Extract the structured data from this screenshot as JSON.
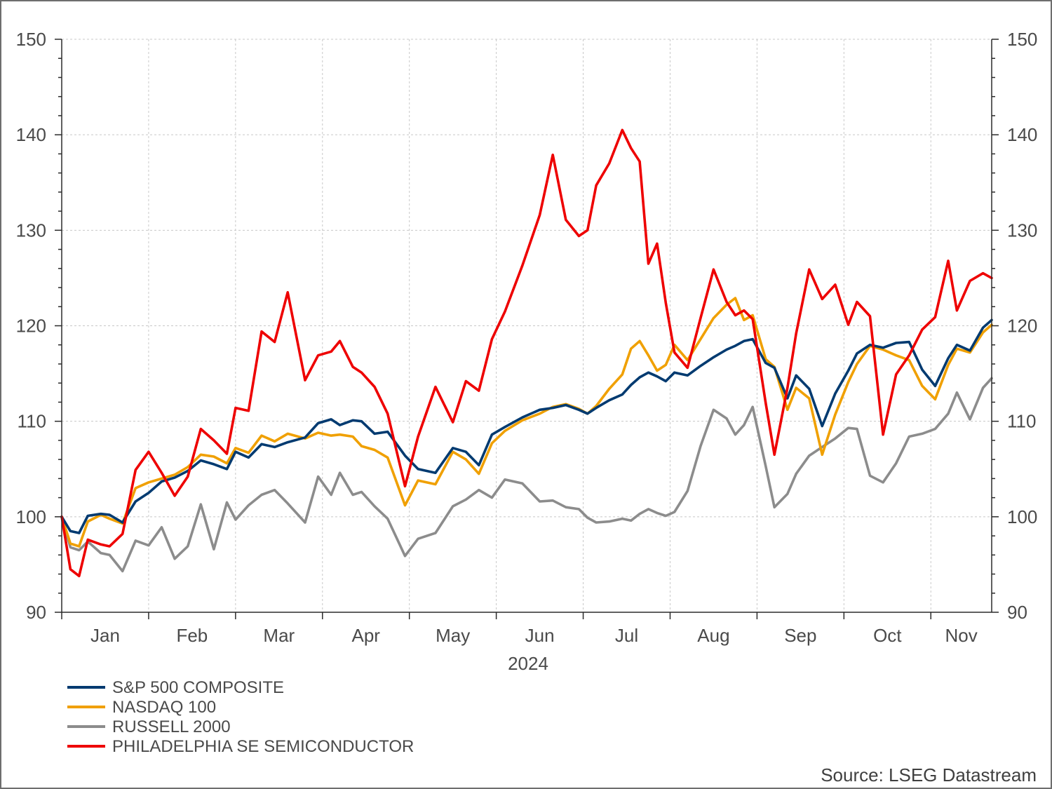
{
  "chart_data": {
    "type": "line",
    "title": "",
    "xlabel": "2024",
    "ylabel": "",
    "ylim": [
      90,
      150
    ],
    "yticks": [
      90,
      100,
      110,
      120,
      130,
      140,
      150
    ],
    "yticks_both_sides": true,
    "grid": true,
    "x_unit": "month index (0 = start of Jan 2024)",
    "xlim": [
      0,
      10.7
    ],
    "months": [
      "Jan",
      "Feb",
      "Mar",
      "Apr",
      "May",
      "Jun",
      "Jul",
      "Aug",
      "Sep",
      "Oct",
      "Nov"
    ],
    "year": "2024",
    "legend_position": "bottom-left",
    "source": "Source: LSEG Datastream",
    "series": [
      {
        "name": "S&P 500 COMPOSITE",
        "color": "#003a70",
        "x": [
          0,
          0.1,
          0.2,
          0.3,
          0.45,
          0.55,
          0.7,
          0.85,
          1.0,
          1.15,
          1.3,
          1.45,
          1.6,
          1.75,
          1.9,
          2.0,
          2.15,
          2.3,
          2.45,
          2.6,
          2.8,
          2.95,
          3.1,
          3.2,
          3.35,
          3.45,
          3.6,
          3.75,
          3.95,
          4.1,
          4.3,
          4.5,
          4.65,
          4.8,
          4.95,
          5.1,
          5.3,
          5.5,
          5.65,
          5.8,
          5.95,
          6.05,
          6.15,
          6.3,
          6.45,
          6.55,
          6.65,
          6.75,
          6.85,
          6.95,
          7.05,
          7.2,
          7.35,
          7.5,
          7.65,
          7.75,
          7.85,
          7.95,
          8.1,
          8.2,
          8.35,
          8.45,
          8.6,
          8.75,
          8.9,
          9.05,
          9.15,
          9.3,
          9.45,
          9.6,
          9.75,
          9.9,
          10.05,
          10.2,
          10.3,
          10.45,
          10.6,
          10.7
        ],
        "y": [
          100,
          98.5,
          98.3,
          100.1,
          100.3,
          100.2,
          99.4,
          101.6,
          102.5,
          103.7,
          104.1,
          104.8,
          105.9,
          105.5,
          105.0,
          106.8,
          106.2,
          107.6,
          107.3,
          107.8,
          108.3,
          109.8,
          110.2,
          109.6,
          110.1,
          110.0,
          108.7,
          108.9,
          106.4,
          105.0,
          104.6,
          107.2,
          106.8,
          105.4,
          108.6,
          109.4,
          110.4,
          111.2,
          111.4,
          111.7,
          111.2,
          110.8,
          111.4,
          112.2,
          112.8,
          113.8,
          114.6,
          115.1,
          114.7,
          114.2,
          115.1,
          114.8,
          115.8,
          116.7,
          117.5,
          117.9,
          118.4,
          118.6,
          116.1,
          115.6,
          112.4,
          114.8,
          113.4,
          109.5,
          112.9,
          115.3,
          117.1,
          118.0,
          117.7,
          118.2,
          118.3,
          115.4,
          113.7,
          116.6,
          118.0,
          117.4,
          119.8,
          120.6
        ]
      },
      {
        "name": "NASDAQ 100",
        "color": "#f0a000",
        "x": [
          0,
          0.1,
          0.2,
          0.3,
          0.45,
          0.55,
          0.7,
          0.85,
          1.0,
          1.15,
          1.3,
          1.45,
          1.6,
          1.75,
          1.9,
          2.0,
          2.15,
          2.3,
          2.45,
          2.6,
          2.8,
          2.95,
          3.1,
          3.2,
          3.35,
          3.45,
          3.6,
          3.75,
          3.95,
          4.1,
          4.3,
          4.5,
          4.65,
          4.8,
          4.95,
          5.1,
          5.3,
          5.5,
          5.65,
          5.8,
          5.95,
          6.05,
          6.15,
          6.3,
          6.45,
          6.55,
          6.65,
          6.75,
          6.85,
          6.95,
          7.05,
          7.2,
          7.35,
          7.5,
          7.65,
          7.75,
          7.85,
          7.95,
          8.1,
          8.2,
          8.35,
          8.45,
          8.6,
          8.75,
          8.9,
          9.05,
          9.15,
          9.3,
          9.45,
          9.6,
          9.75,
          9.9,
          10.05,
          10.2,
          10.3,
          10.45,
          10.6,
          10.7
        ],
        "y": [
          100,
          97.2,
          96.9,
          99.5,
          100.2,
          99.8,
          99.3,
          103.0,
          103.6,
          104.0,
          104.4,
          105.2,
          106.5,
          106.3,
          105.6,
          107.2,
          106.7,
          108.5,
          107.9,
          108.7,
          108.2,
          108.8,
          108.5,
          108.6,
          108.4,
          107.4,
          107.0,
          106.2,
          101.2,
          103.8,
          103.4,
          106.8,
          106.0,
          104.5,
          107.7,
          109.0,
          110.1,
          110.8,
          111.5,
          111.8,
          111.3,
          110.8,
          111.6,
          113.4,
          114.9,
          117.6,
          118.4,
          116.9,
          115.3,
          115.9,
          118.0,
          116.4,
          118.6,
          120.8,
          122.2,
          122.9,
          120.6,
          121.1,
          116.5,
          115.7,
          111.2,
          113.5,
          112.4,
          106.5,
          110.7,
          114.1,
          116.0,
          117.9,
          117.5,
          116.9,
          116.4,
          113.7,
          112.3,
          115.9,
          117.6,
          117.2,
          119.3,
          120.1
        ]
      },
      {
        "name": "RUSSELL 2000",
        "color": "#8c8c8c",
        "x": [
          0,
          0.1,
          0.2,
          0.3,
          0.45,
          0.55,
          0.7,
          0.85,
          1.0,
          1.15,
          1.3,
          1.45,
          1.6,
          1.75,
          1.9,
          2.0,
          2.15,
          2.3,
          2.45,
          2.6,
          2.8,
          2.95,
          3.1,
          3.2,
          3.35,
          3.45,
          3.6,
          3.75,
          3.95,
          4.1,
          4.3,
          4.5,
          4.65,
          4.8,
          4.95,
          5.1,
          5.3,
          5.5,
          5.65,
          5.8,
          5.95,
          6.05,
          6.15,
          6.3,
          6.45,
          6.55,
          6.65,
          6.75,
          6.85,
          6.95,
          7.05,
          7.2,
          7.35,
          7.5,
          7.65,
          7.75,
          7.85,
          7.95,
          8.1,
          8.2,
          8.35,
          8.45,
          8.6,
          8.75,
          8.9,
          9.05,
          9.15,
          9.3,
          9.45,
          9.6,
          9.75,
          9.9,
          10.05,
          10.2,
          10.3,
          10.45,
          10.6,
          10.7
        ],
        "y": [
          100,
          96.8,
          96.5,
          97.4,
          96.2,
          96.0,
          94.3,
          97.5,
          97.0,
          98.9,
          95.6,
          96.9,
          101.3,
          96.6,
          101.5,
          99.7,
          101.2,
          102.3,
          102.8,
          101.4,
          99.4,
          104.2,
          102.3,
          104.6,
          102.3,
          102.6,
          101.1,
          99.8,
          95.9,
          97.7,
          98.3,
          101.1,
          101.8,
          102.8,
          102.0,
          103.9,
          103.5,
          101.6,
          101.7,
          101.0,
          100.8,
          99.9,
          99.4,
          99.5,
          99.8,
          99.6,
          100.3,
          100.8,
          100.4,
          100.1,
          100.5,
          102.7,
          107.4,
          111.2,
          110.3,
          108.6,
          109.6,
          111.5,
          105.3,
          101.0,
          102.4,
          104.5,
          106.4,
          107.3,
          108.2,
          109.3,
          109.2,
          104.3,
          103.6,
          105.6,
          108.4,
          108.7,
          109.2,
          110.8,
          113.0,
          110.2,
          113.5,
          114.5
        ]
      },
      {
        "name": "PHILADELPHIA SE SEMICONDUCTOR",
        "color": "#ee0000",
        "x": [
          0,
          0.1,
          0.2,
          0.3,
          0.45,
          0.55,
          0.7,
          0.85,
          1.0,
          1.15,
          1.3,
          1.45,
          1.6,
          1.75,
          1.9,
          2.0,
          2.15,
          2.3,
          2.45,
          2.6,
          2.8,
          2.95,
          3.1,
          3.2,
          3.35,
          3.45,
          3.6,
          3.75,
          3.95,
          4.1,
          4.3,
          4.5,
          4.65,
          4.8,
          4.95,
          5.1,
          5.3,
          5.5,
          5.65,
          5.8,
          5.95,
          6.05,
          6.15,
          6.3,
          6.45,
          6.55,
          6.65,
          6.75,
          6.85,
          6.95,
          7.05,
          7.2,
          7.35,
          7.5,
          7.65,
          7.75,
          7.85,
          7.95,
          8.1,
          8.2,
          8.35,
          8.45,
          8.6,
          8.75,
          8.9,
          9.05,
          9.15,
          9.3,
          9.45,
          9.6,
          9.75,
          9.9,
          10.05,
          10.2,
          10.3,
          10.45,
          10.6,
          10.7
        ],
        "y": [
          100,
          94.5,
          93.8,
          97.6,
          97.1,
          96.9,
          98.2,
          104.9,
          106.8,
          104.6,
          102.2,
          104.2,
          109.2,
          108.0,
          106.6,
          111.4,
          111.1,
          119.4,
          118.3,
          123.5,
          114.3,
          116.9,
          117.3,
          118.4,
          115.7,
          115.1,
          113.6,
          110.8,
          103.2,
          108.4,
          113.6,
          109.9,
          114.2,
          113.2,
          118.6,
          121.5,
          126.3,
          131.6,
          137.9,
          131.1,
          129.4,
          130.0,
          134.7,
          137.0,
          140.5,
          138.6,
          137.2,
          126.5,
          128.6,
          122.4,
          117.2,
          115.6,
          120.8,
          125.9,
          122.5,
          121.1,
          121.6,
          120.7,
          111.9,
          106.5,
          113.5,
          119.2,
          125.9,
          122.8,
          124.3,
          120.1,
          122.5,
          121.0,
          108.6,
          114.9,
          116.9,
          119.6,
          120.9,
          126.8,
          121.6,
          124.7,
          125.5,
          125.0
        ]
      }
    ]
  }
}
